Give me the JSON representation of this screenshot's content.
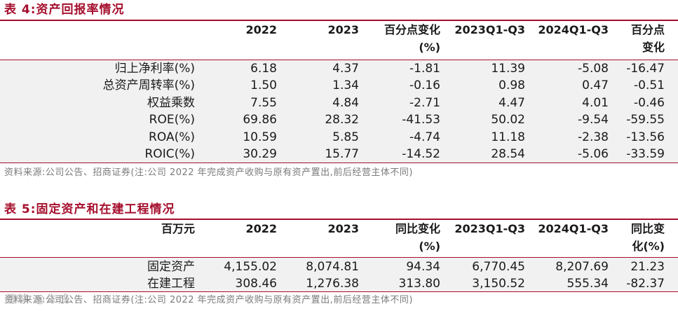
{
  "table4": {
    "title": "表 4:资产回报率情况",
    "headers": [
      {
        "l1": "",
        "l2": ""
      },
      {
        "l1": "2022",
        "l2": ""
      },
      {
        "l1": "2023",
        "l2": ""
      },
      {
        "l1": "百分点变化",
        "l2": "(%)"
      },
      {
        "l1": "2023Q1-Q3",
        "l2": ""
      },
      {
        "l1": "2024Q1-Q3",
        "l2": ""
      },
      {
        "l1": "百分点",
        "l2": "变化"
      }
    ],
    "rows": [
      [
        "归上净利率(%)",
        "6.18",
        "4.37",
        "-1.81",
        "11.39",
        "-5.08",
        "-16.47"
      ],
      [
        "总资产周转率(%)",
        "1.50",
        "1.34",
        "-0.16",
        "0.98",
        "0.47",
        "-0.51"
      ],
      [
        "权益乘数",
        "7.55",
        "4.84",
        "-2.71",
        "4.47",
        "4.01",
        "-0.46"
      ],
      [
        "ROE(%)",
        "69.86",
        "28.32",
        "-41.53",
        "50.02",
        "-9.54",
        "-59.55"
      ],
      [
        "ROA(%)",
        "10.59",
        "5.85",
        "-4.74",
        "11.18",
        "-2.38",
        "-13.56"
      ],
      [
        "ROIC(%)",
        "30.29",
        "15.77",
        "-14.52",
        "28.54",
        "-5.06",
        "-33.59"
      ]
    ],
    "source": "资料来源:公司公告、招商证券(注:公司 2022 年完成资产收购与原有资产置出,前后经营主体不同)"
  },
  "table5": {
    "title": "表 5:固定资产和在建工程情况",
    "headers": [
      {
        "l1": "百万元",
        "l2": ""
      },
      {
        "l1": "2022",
        "l2": ""
      },
      {
        "l1": "2023",
        "l2": ""
      },
      {
        "l1": "同比变化",
        "l2": "(%)"
      },
      {
        "l1": "2023Q1-Q3",
        "l2": ""
      },
      {
        "l1": "2024Q1-Q3",
        "l2": ""
      },
      {
        "l1": "同比变",
        "l2": "化(%)"
      }
    ],
    "rows": [
      [
        "固定资产",
        "4,155.02",
        "8,074.81",
        "94.34",
        "6,770.45",
        "8,207.69",
        "21.23"
      ],
      [
        "在建工程",
        "308.46",
        "1,276.38",
        "313.80",
        "3,150.52",
        "555.34",
        "-82.37"
      ]
    ],
    "source": "资料来源:公司公告、招商证券(注:公司 2022 年完成资产收购与原有资产置出,前后经营主体不同)"
  },
  "watermark": "雪球 @朱成"
}
